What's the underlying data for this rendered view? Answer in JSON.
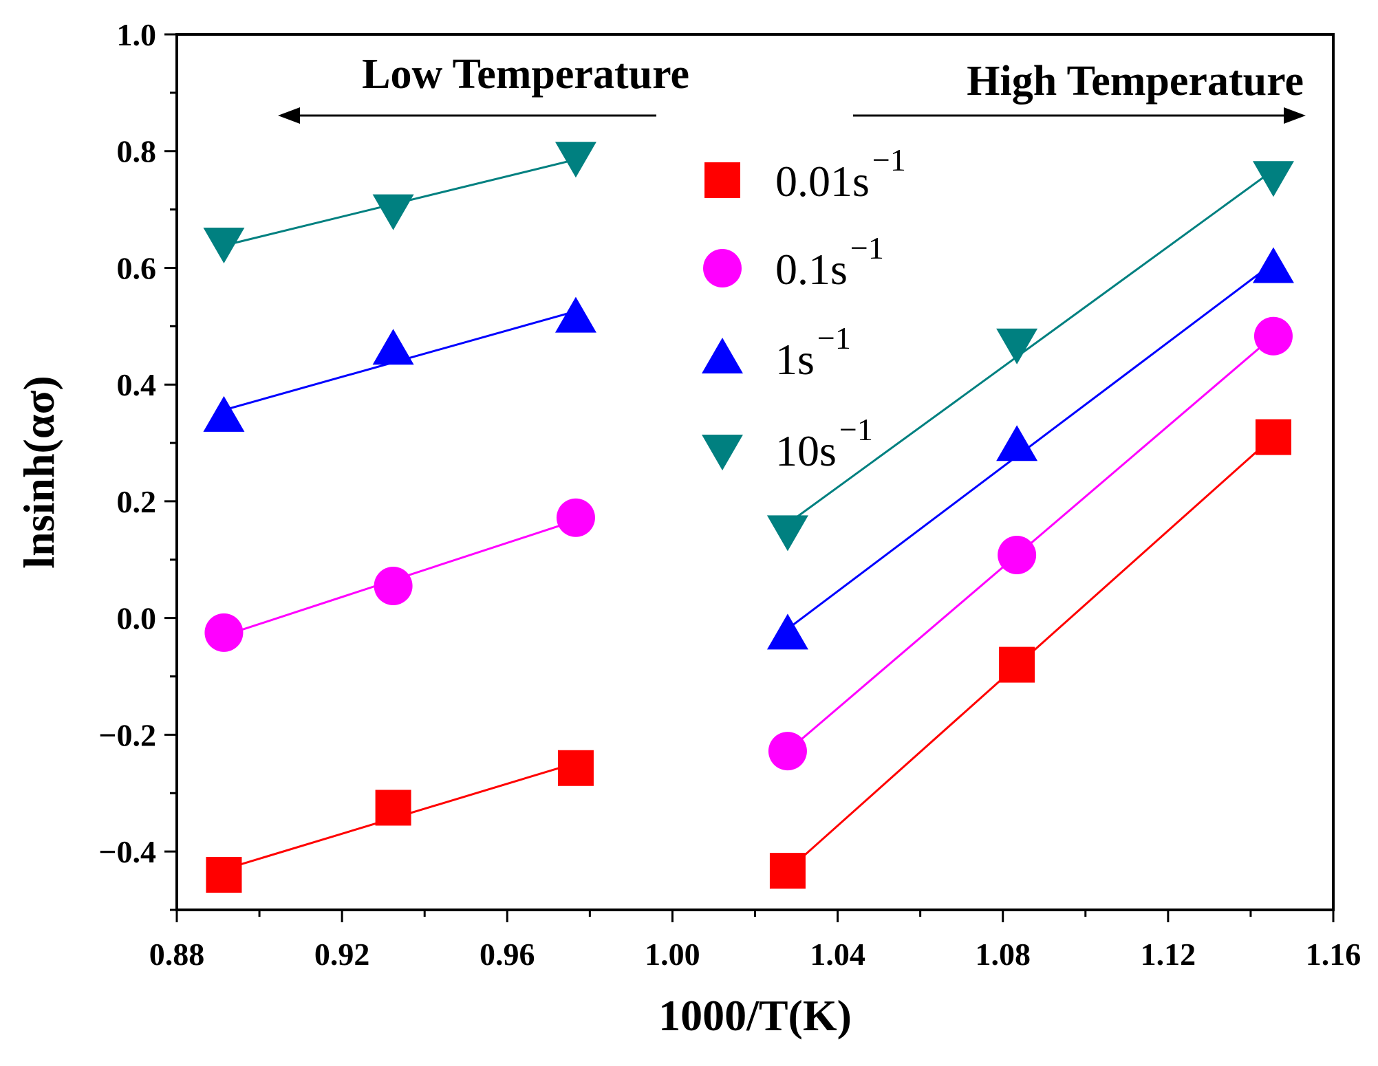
{
  "chart_data": {
    "type": "scatter",
    "xlabel": "1000/T(K)",
    "ylabel": "lnsinh(ασ)",
    "xlim": [
      0.88,
      1.16
    ],
    "ylim": [
      -0.5,
      1.0
    ],
    "xticks": [
      "0.88",
      "0.92",
      "0.96",
      "1.00",
      "1.04",
      "1.08",
      "1.12",
      "1.16"
    ],
    "yticks": [
      "−0.4",
      "−0.2",
      "0.0",
      "0.2",
      "0.4",
      "0.6",
      "0.8",
      "1.0"
    ],
    "annotations": [
      {
        "text": "Low Temperature",
        "arrow": "left"
      },
      {
        "text": "High Temperature",
        "arrow": "right"
      }
    ],
    "series": [
      {
        "name": "0.01s",
        "sup": "−1",
        "marker": "square",
        "color": "#ff0000",
        "low": {
          "x": [
            0.8914,
            0.9324,
            0.9766
          ],
          "y": [
            -0.44,
            -0.325,
            -0.257
          ]
        },
        "high": {
          "x": [
            1.0279,
            1.0834,
            1.1455
          ],
          "y": [
            -0.433,
            -0.08,
            0.31
          ]
        }
      },
      {
        "name": "0.1s",
        "sup": "−1",
        "marker": "circle",
        "color": "#ff00ff",
        "low": {
          "x": [
            0.8914,
            0.9324,
            0.9766
          ],
          "y": [
            -0.025,
            0.055,
            0.172
          ]
        },
        "high": {
          "x": [
            1.0279,
            1.0834,
            1.1455
          ],
          "y": [
            -0.228,
            0.108,
            0.483
          ]
        }
      },
      {
        "name": "1s",
        "sup": "−1",
        "marker": "triangle-up",
        "color": "#0000ff",
        "low": {
          "x": [
            0.8914,
            0.9324,
            0.9766
          ],
          "y": [
            0.345,
            0.46,
            0.515
          ]
        },
        "high": {
          "x": [
            1.0279,
            1.0834,
            1.1455
          ],
          "y": [
            -0.028,
            0.295,
            0.6
          ]
        }
      },
      {
        "name": "10s",
        "sup": "−1",
        "marker": "triangle-down",
        "color": "#008080",
        "low": {
          "x": [
            0.8914,
            0.9324,
            0.9766
          ],
          "y": [
            0.643,
            0.7,
            0.79
          ]
        },
        "high": {
          "x": [
            1.0279,
            1.0834,
            1.1455
          ],
          "y": [
            0.15,
            0.47,
            0.757
          ]
        }
      }
    ]
  }
}
